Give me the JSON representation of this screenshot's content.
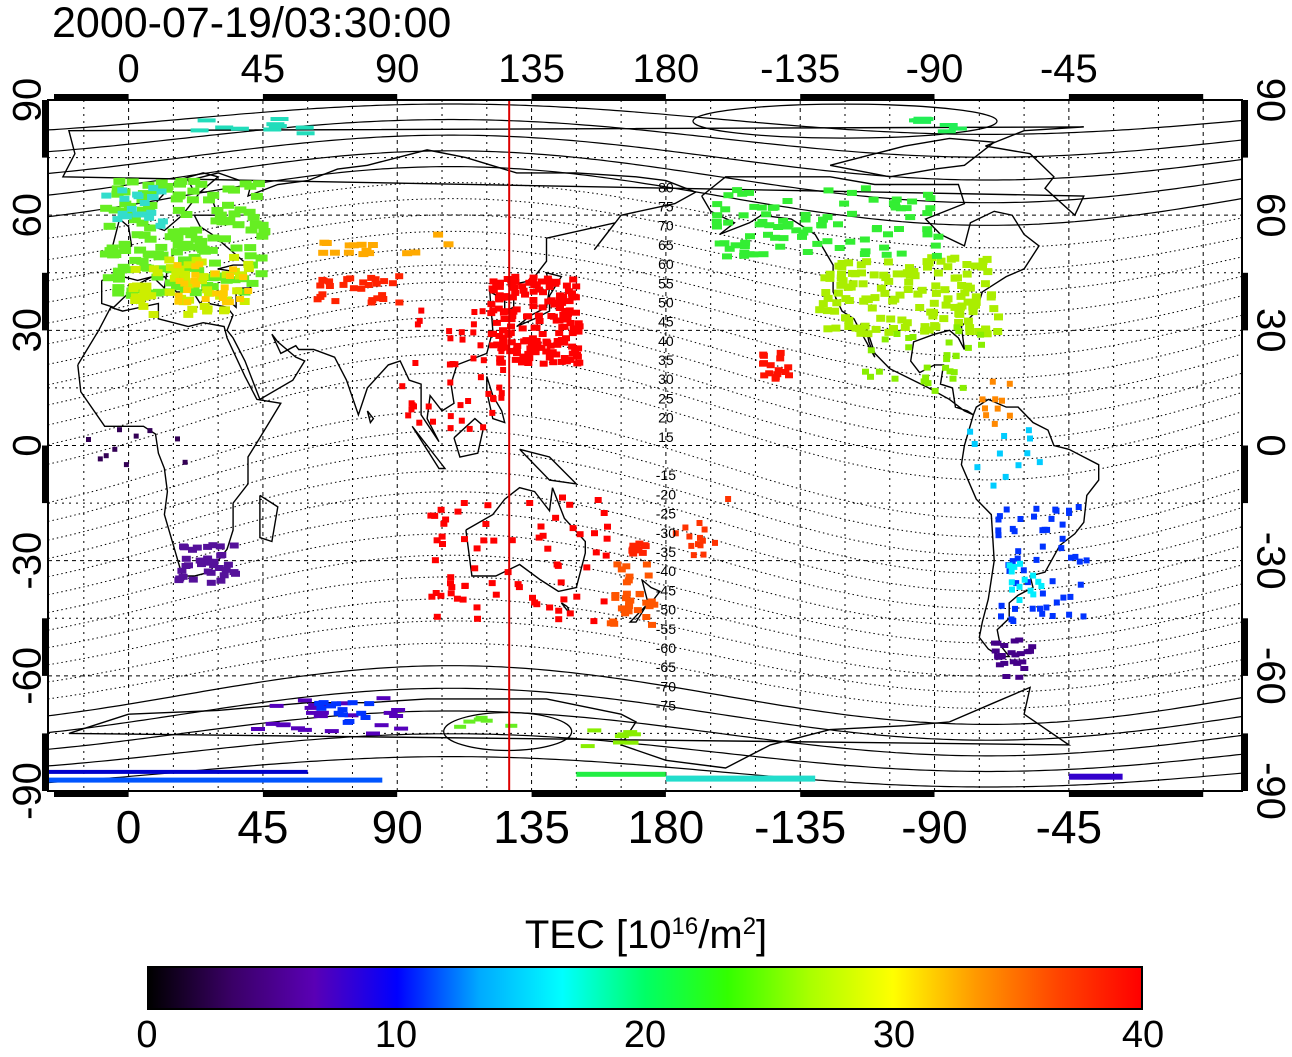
{
  "timestamp": "2000-07-19/03:30:00",
  "map": {
    "x_ticks": [
      "0",
      "45",
      "90",
      "135",
      "180",
      "-135",
      "-90",
      "-45"
    ],
    "y_ticks": [
      "90",
      "60",
      "30",
      "0",
      "-30",
      "-60",
      "-90"
    ],
    "mag_lat_labels_north": [
      "80",
      "75",
      "70",
      "65",
      "60",
      "55",
      "50",
      "45",
      "40",
      "35",
      "30",
      "25",
      "20",
      "15"
    ],
    "mag_lat_labels_south": [
      "-15",
      "-20",
      "-25",
      "-30",
      "-35",
      "-40",
      "-45",
      "-50",
      "-55",
      "-60",
      "-65",
      "-70",
      "-75"
    ],
    "noon_meridian_color": "#dd0000",
    "lon_range": [
      -27,
      373
    ],
    "lat_range": [
      -90,
      90
    ]
  },
  "colorbar": {
    "title_prefix": "TEC  [10",
    "title_exp1": "16",
    "title_mid": "/m",
    "title_exp2": "2",
    "title_suffix": "]",
    "ticks": [
      "0",
      "10",
      "20",
      "30",
      "40"
    ],
    "colors": [
      "#000000",
      "#3a0066",
      "#5a00b5",
      "#0000ff",
      "#00aaff",
      "#00ffff",
      "#00ff66",
      "#33ff00",
      "#aaff00",
      "#ffff00",
      "#ff9900",
      "#ff4400",
      "#ff0000"
    ]
  }
}
